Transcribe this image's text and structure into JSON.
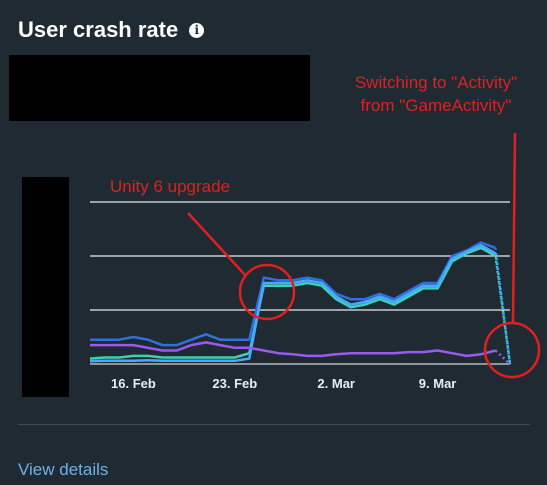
{
  "header": {
    "title": "User crash rate",
    "info_icon": "info-icon"
  },
  "annotations": {
    "activity_line1": "Switching to \"Activity\"",
    "activity_line2": "from \"GameActivity\"",
    "unity": "Unity 6 upgrade",
    "color": "#e02020"
  },
  "footer": {
    "view_details": "View details"
  },
  "chart_data": {
    "type": "line",
    "title": "",
    "xlabel": "",
    "ylabel": "",
    "x_tick_labels": [
      "16. Feb",
      "23. Feb",
      "2. Mar",
      "9. Mar"
    ],
    "x_tick_index": [
      3,
      10,
      17,
      24
    ],
    "ylim": [
      0,
      3
    ],
    "grid": true,
    "y_axis_labels_visible": false,
    "series": [
      {
        "color": "#2f6fe0",
        "values": [
          0.45,
          0.45,
          0.45,
          0.5,
          0.45,
          0.35,
          0.35,
          0.45,
          0.55,
          0.45,
          0.45,
          0.45,
          1.6,
          1.55,
          1.55,
          1.6,
          1.55,
          1.3,
          1.2,
          1.2,
          1.3,
          1.2,
          1.35,
          1.5,
          1.5,
          2.0,
          2.1,
          2.25,
          2.15,
          0.0
        ]
      },
      {
        "color": "#3ad1b8",
        "values": [
          0.1,
          0.12,
          0.12,
          0.15,
          0.15,
          0.12,
          0.12,
          0.12,
          0.12,
          0.12,
          0.12,
          0.2,
          1.45,
          1.45,
          1.45,
          1.5,
          1.45,
          1.2,
          1.05,
          1.1,
          1.2,
          1.1,
          1.25,
          1.4,
          1.4,
          1.9,
          2.05,
          2.15,
          2.0,
          0.0
        ]
      },
      {
        "color": "#4aa8ff",
        "values": [
          0.05,
          0.06,
          0.06,
          0.06,
          0.07,
          0.06,
          0.06,
          0.06,
          0.06,
          0.06,
          0.06,
          0.1,
          1.5,
          1.5,
          1.5,
          1.55,
          1.5,
          1.25,
          1.1,
          1.15,
          1.25,
          1.15,
          1.3,
          1.45,
          1.45,
          1.95,
          2.08,
          2.2,
          2.05,
          0.0
        ]
      },
      {
        "color": "#9b59f0",
        "values": [
          0.35,
          0.35,
          0.35,
          0.35,
          0.3,
          0.25,
          0.25,
          0.35,
          0.4,
          0.35,
          0.3,
          0.3,
          0.25,
          0.2,
          0.18,
          0.15,
          0.15,
          0.18,
          0.2,
          0.2,
          0.2,
          0.2,
          0.22,
          0.22,
          0.25,
          0.2,
          0.15,
          0.18,
          0.25,
          0.0
        ]
      }
    ]
  }
}
